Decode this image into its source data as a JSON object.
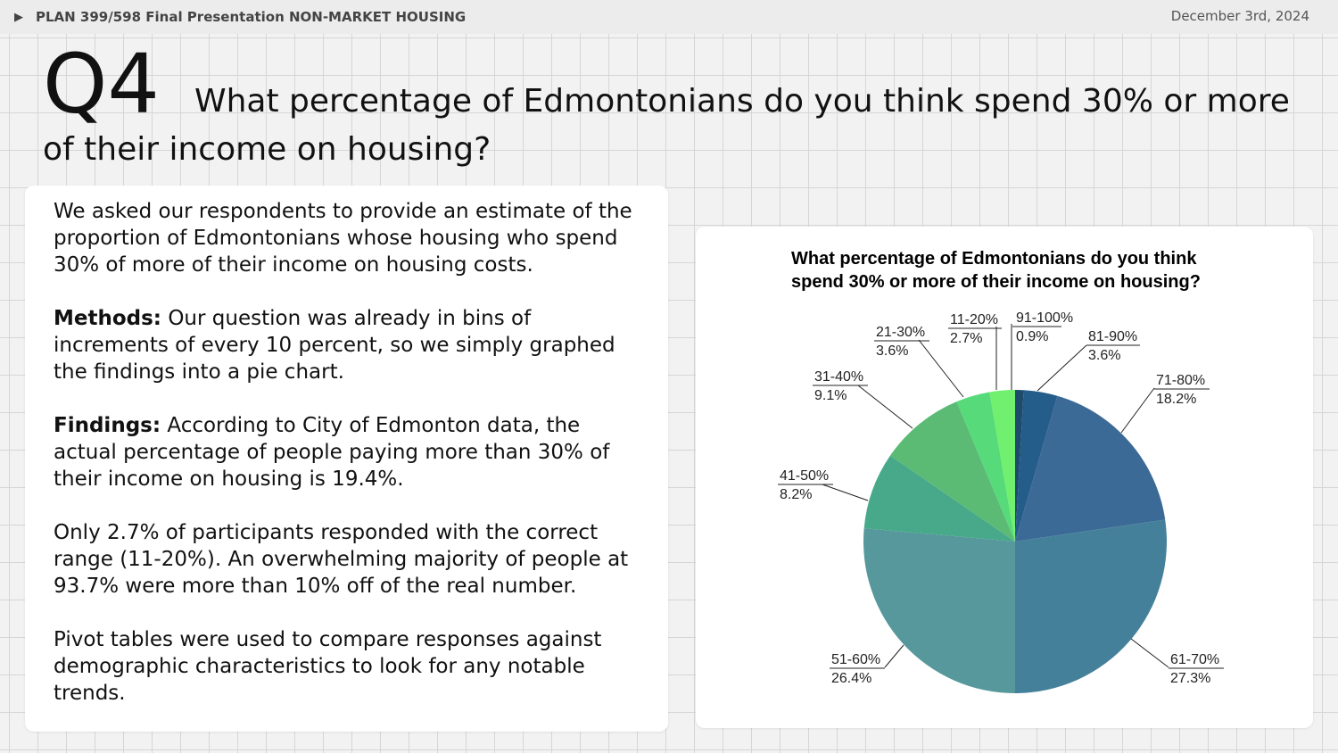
{
  "header": {
    "title": "PLAN 399/598 Final Presentation NON-MARKET HOUSING",
    "date": "December 3rd, 2024",
    "icon": "play-triangle-icon"
  },
  "slide": {
    "number": "Q4",
    "question_line1": "What percentage of Edmontonians do you think spend 30% or more",
    "question_line2": "of their income on housing?"
  },
  "body": {
    "p1": "We asked our respondents to provide an estimate of the proportion of Edmontonians whose housing who spend 30% of more of their income on housing costs.",
    "methods_label": "Methods:",
    "methods_text": " Our question was already in bins of increments of every 10 percent, so we simply graphed the findings into a pie chart.",
    "findings_label": "Findings:",
    "findings_text": " According to City of Edmonton data, the actual percentage of people paying more than 30% of their income on housing is 19.4%.",
    "p4": "Only 2.7% of participants responded with the correct range (11-20%). An overwhelming majority of people at 93.7% were more than 10% off of the real number.",
    "p5": "Pivot tables were used to compare responses against demographic characteristics to look for any notable trends."
  },
  "chart_data": {
    "type": "pie",
    "title_line1": "What percentage of Edmontonians do you think",
    "title_line2": "spend 30% or more of their income on housing?",
    "categories": [
      "91-100%",
      "81-90%",
      "71-80%",
      "61-70%",
      "51-60%",
      "41-50%",
      "31-40%",
      "21-30%",
      "11-20%"
    ],
    "values": [
      0.9,
      3.6,
      18.2,
      27.3,
      26.4,
      8.2,
      9.1,
      3.6,
      2.7
    ],
    "labels": [
      "0.9%",
      "3.6%",
      "18.2%",
      "27.3%",
      "26.4%",
      "8.2%",
      "9.1%",
      "3.6%",
      "2.7%"
    ],
    "colors": [
      "#1e4a6c",
      "#245c8a",
      "#3c6a96",
      "#45809a",
      "#56989b",
      "#48a98a",
      "#5bbb74",
      "#56da7a",
      "#70f06e"
    ],
    "start": "12 o'clock",
    "direction": "clockwise",
    "legend": "none"
  }
}
